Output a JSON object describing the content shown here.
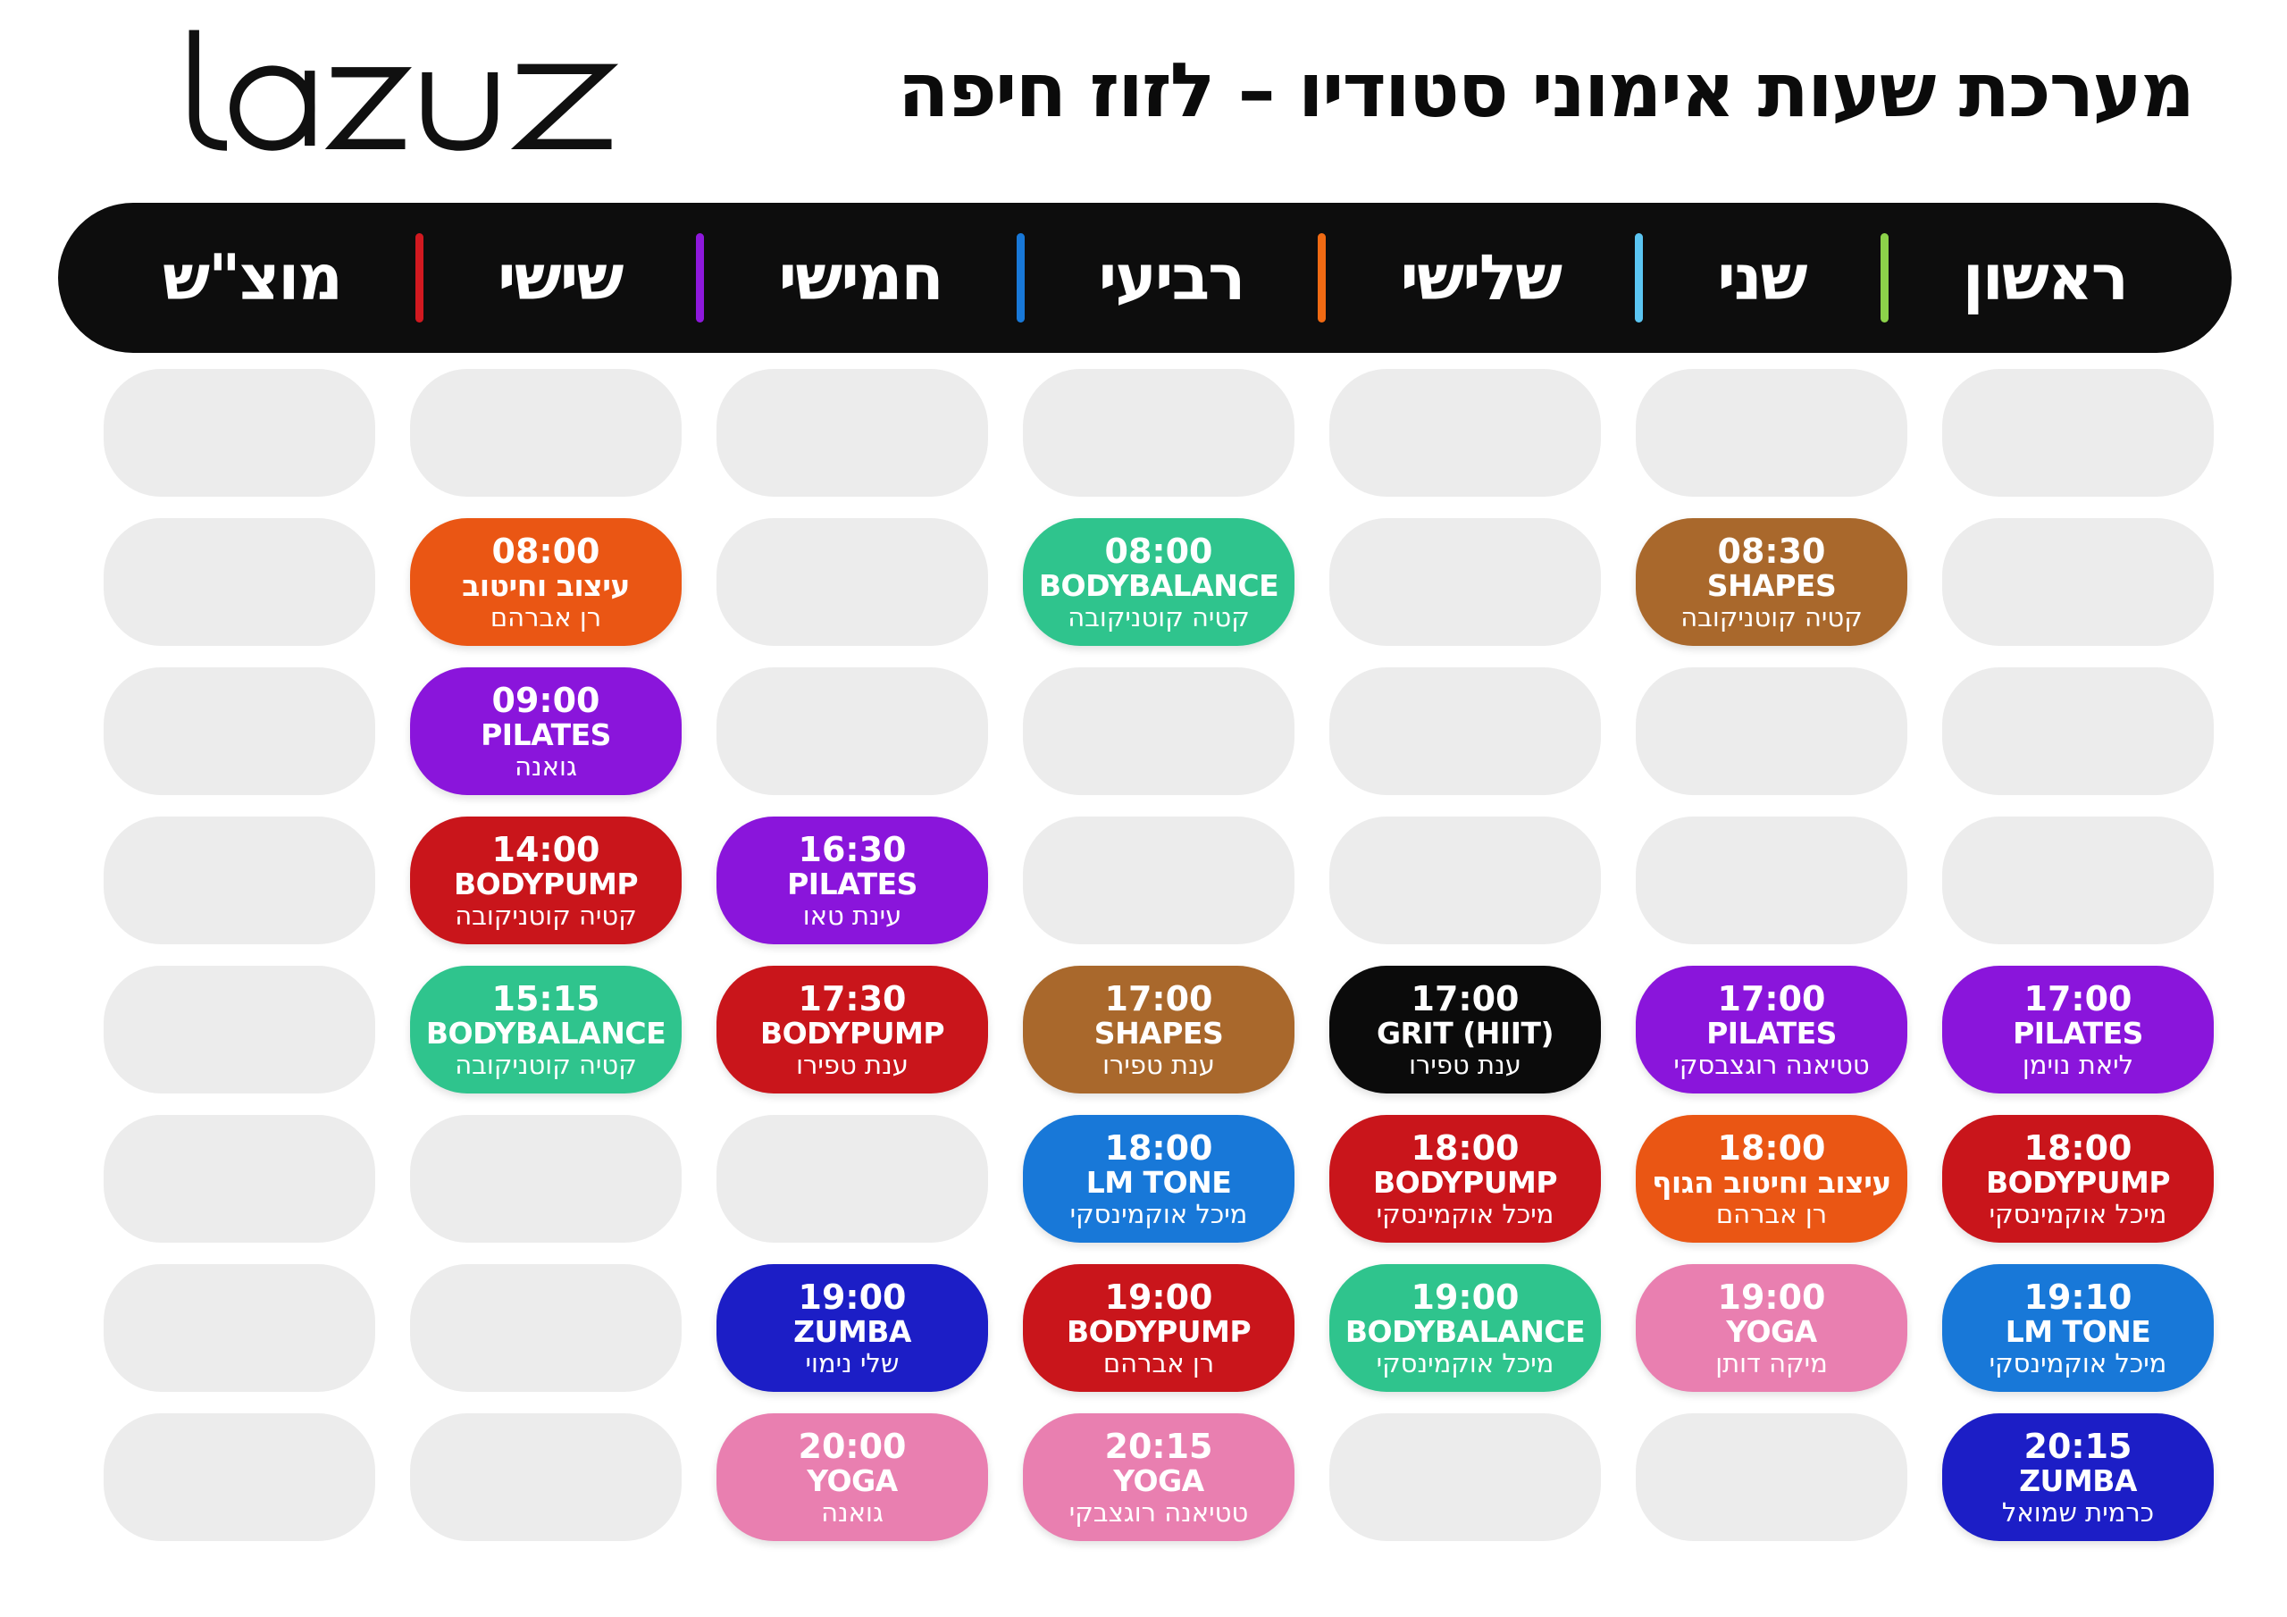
{
  "header": {
    "logo_text": "lazuz",
    "title": "מערכת שעות אימוני סטודיו – לזוז חיפה"
  },
  "palette": {
    "orange": "#EA5614",
    "green": "#2FC48D",
    "brown": "#A9682C",
    "purple": "#8A15DB",
    "red": "#C9151B",
    "black": "#0B0B0B",
    "blue": "#1878D8",
    "navy": "#1C1EC6",
    "pink": "#E97FB0",
    "empty_slot": "#ECECEC",
    "bar_background": "#0D0D0D",
    "divider_green": "#8CD24A",
    "divider_lightblue": "#5BC5F2",
    "divider_orange": "#F06A13",
    "divider_blue": "#1878D8",
    "divider_purple": "#8E18DC",
    "divider_red": "#D11920"
  },
  "day_bar": {
    "days": [
      {
        "label": "ראשון",
        "divider_after": "#8CD24A"
      },
      {
        "label": "שני",
        "divider_after": "#5BC5F2"
      },
      {
        "label": "שלישי",
        "divider_after": "#F06A13"
      },
      {
        "label": "רביעי",
        "divider_after": "#1878D8"
      },
      {
        "label": "חמישי",
        "divider_after": "#8E18DC"
      },
      {
        "label": "שישי",
        "divider_after": "#D11920"
      },
      {
        "label": "מוצ\"ש",
        "divider_after": null
      }
    ]
  },
  "schedule": {
    "days": [
      {
        "day": "ראשון",
        "slots": [
          null,
          null,
          null,
          null,
          {
            "time": "17:00",
            "name": "PILATES",
            "instructor": "ליאת נוימן",
            "color": "purple"
          },
          {
            "time": "18:00",
            "name": "BODYPUMP",
            "instructor": "מיכל אוקמינסקי",
            "color": "red"
          },
          {
            "time": "19:10",
            "name": "LM TONE",
            "instructor": "מיכל אוקמינסקי",
            "color": "blue"
          },
          {
            "time": "20:15",
            "name": "ZUMBA",
            "instructor": "כרמית שמואל",
            "color": "navy"
          }
        ]
      },
      {
        "day": "שני",
        "slots": [
          null,
          {
            "time": "08:30",
            "name": "SHAPES",
            "instructor": "קטיה קוטניקובה",
            "color": "brown"
          },
          null,
          null,
          {
            "time": "17:00",
            "name": "PILATES",
            "instructor": "טטיאנה רוגצבסקי",
            "color": "purple"
          },
          {
            "time": "18:00",
            "name": "עיצוב וחיטוב הגוף",
            "instructor": "רן אברהם",
            "color": "orange"
          },
          {
            "time": "19:00",
            "name": "YOGA",
            "instructor": "מיקה דותן",
            "color": "pink"
          },
          null
        ]
      },
      {
        "day": "שלישי",
        "slots": [
          null,
          null,
          null,
          null,
          {
            "time": "17:00",
            "name": "GRIT (HIIT)",
            "instructor": "ענת טפירו",
            "color": "black"
          },
          {
            "time": "18:00",
            "name": "BODYPUMP",
            "instructor": "מיכל אוקמינסקי",
            "color": "red"
          },
          {
            "time": "19:00",
            "name": "BODYBALANCE",
            "instructor": "מיכל אוקמינסקי",
            "color": "green"
          },
          null
        ]
      },
      {
        "day": "רביעי",
        "slots": [
          null,
          {
            "time": "08:00",
            "name": "BODYBALANCE",
            "instructor": "קטיה קוטניקובה",
            "color": "green"
          },
          null,
          null,
          {
            "time": "17:00",
            "name": "SHAPES",
            "instructor": "ענת טפירו",
            "color": "brown"
          },
          {
            "time": "18:00",
            "name": "LM TONE",
            "instructor": "מיכל אוקמינסקי",
            "color": "blue"
          },
          {
            "time": "19:00",
            "name": "BODYPUMP",
            "instructor": "רן אברהם",
            "color": "red"
          },
          {
            "time": "20:15",
            "name": "YOGA",
            "instructor": "טטיאנה רוגצבקי",
            "color": "pink"
          }
        ]
      },
      {
        "day": "חמישי",
        "slots": [
          null,
          null,
          null,
          {
            "time": "16:30",
            "name": "PILATES",
            "instructor": "עינת טאו",
            "color": "purple"
          },
          {
            "time": "17:30",
            "name": "BODYPUMP",
            "instructor": "ענת טפירו",
            "color": "red"
          },
          null,
          {
            "time": "19:00",
            "name": "ZUMBA",
            "instructor": "שלי נימוי",
            "color": "navy"
          },
          {
            "time": "20:00",
            "name": "YOGA",
            "instructor": "גואנה",
            "color": "pink"
          }
        ]
      },
      {
        "day": "שישי",
        "slots": [
          null,
          {
            "time": "08:00",
            "name": "עיצוב וחיטוב",
            "instructor": "רן אברהם",
            "color": "orange"
          },
          {
            "time": "09:00",
            "name": "PILATES",
            "instructor": "גואנה",
            "color": "purple"
          },
          {
            "time": "14:00",
            "name": "BODYPUMP",
            "instructor": "קטיה קוטניקובה",
            "color": "red"
          },
          {
            "time": "15:15",
            "name": "BODYBALANCE",
            "instructor": "קטיה קוטניקובה",
            "color": "green"
          },
          null,
          null,
          null
        ]
      },
      {
        "day": "מוצ\"ש",
        "slots": [
          null,
          null,
          null,
          null,
          null,
          null,
          null,
          null
        ]
      }
    ]
  }
}
